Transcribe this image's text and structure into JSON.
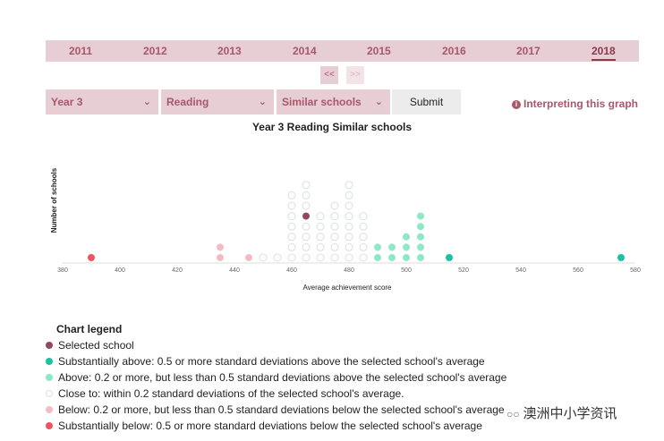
{
  "years": [
    {
      "label": "2011",
      "active": false
    },
    {
      "label": "2012",
      "active": false
    },
    {
      "label": "2013",
      "active": false
    },
    {
      "label": "2014",
      "active": false
    },
    {
      "label": "2015",
      "active": false
    },
    {
      "label": "2016",
      "active": false
    },
    {
      "label": "2017",
      "active": false
    },
    {
      "label": "2018",
      "active": true
    }
  ],
  "pager": {
    "prev": "<<",
    "next": ">>"
  },
  "filters": {
    "year": "Year 3",
    "domain": "Reading",
    "comparison": "Similar schools",
    "submit": "Submit"
  },
  "interpreting_link": "Interpreting this graph",
  "colors": {
    "selected": "#8e4a5c",
    "substantially_above": "#19c2a2",
    "above": "#8de8c6",
    "close": "#ffffff",
    "close_stroke": "#d9dde6",
    "below": "#f3bcc5",
    "substantially_below": "#ef5461",
    "accent": "#a7586b",
    "tab_bg": "#e7cdd4"
  },
  "chart_data": {
    "type": "scatter",
    "title": "Year 3 Reading Similar schools",
    "xlabel": "Average achievement score",
    "ylabel": "Number of schools",
    "xlim": [
      380,
      580
    ],
    "xticks": [
      380,
      400,
      420,
      440,
      460,
      480,
      500,
      520,
      540,
      560,
      580
    ],
    "grid": false,
    "legend_placement": "below",
    "columns": [
      {
        "x": 390,
        "count": 1,
        "category": "substantially_below"
      },
      {
        "x": 435,
        "count": 2,
        "category": "below"
      },
      {
        "x": 445,
        "count": 1,
        "category": "below"
      },
      {
        "x": 450,
        "count": 1,
        "category": "close"
      },
      {
        "x": 455,
        "count": 1,
        "category": "close"
      },
      {
        "x": 460,
        "count": 7,
        "category": "close"
      },
      {
        "x": 465,
        "count": 8,
        "category": "close"
      },
      {
        "x": 470,
        "count": 5,
        "category": "close"
      },
      {
        "x": 475,
        "count": 6,
        "category": "close"
      },
      {
        "x": 480,
        "count": 8,
        "category": "close"
      },
      {
        "x": 485,
        "count": 5,
        "category": "close"
      },
      {
        "x": 490,
        "count": 2,
        "category": "above"
      },
      {
        "x": 495,
        "count": 2,
        "category": "above"
      },
      {
        "x": 500,
        "count": 3,
        "category": "above"
      },
      {
        "x": 505,
        "count": 5,
        "category": "above"
      },
      {
        "x": 515,
        "count": 1,
        "category": "substantially_above"
      },
      {
        "x": 575,
        "count": 1,
        "category": "substantially_above"
      }
    ],
    "selected": {
      "x": 465,
      "row": 4
    }
  },
  "legend": {
    "title": "Chart legend",
    "items": [
      {
        "key": "selected",
        "label": "Selected school"
      },
      {
        "key": "substantially_above",
        "label": "Substantially above: 0.5 or more standard deviations above the selected school's average"
      },
      {
        "key": "above",
        "label": "Above: 0.2 or more, but less than 0.5 standard deviations above the selected school's average"
      },
      {
        "key": "close",
        "label": "Close to: within 0.2 standard deviations of the selected school's average."
      },
      {
        "key": "below",
        "label": "Below: 0.2 or more, but less than 0.5 standard deviations below the selected school's average"
      },
      {
        "key": "substantially_below",
        "label": "Substantially below: 0.5 or more standard deviations below the selected school's average"
      }
    ]
  },
  "watermark": {
    "icon": "wechat-icon",
    "text": "澳洲中小学资讯"
  }
}
